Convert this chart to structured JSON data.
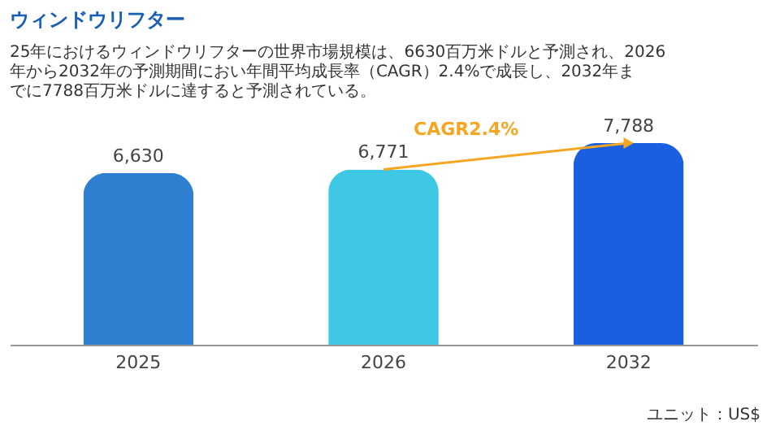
{
  "chart_data": {
    "type": "bar",
    "title": "ウィンドウリフター",
    "subtitle": "25年におけるウィンドウリフターの世界市場規模は、6630百万米ドルと予測され、2026年から2032年の予測期間におい年間平均成長率（CAGR）2.4%で成長し、2032年までに7788百万米ドルに達すると予測されている。",
    "categories": [
      "2025",
      "2026",
      "2032"
    ],
    "values": [
      6630,
      6771,
      7788
    ],
    "colors": [
      "#2f7fd0",
      "#3ec8e6",
      "#1a5fe0"
    ],
    "value_labels": [
      "6,630",
      "6,771",
      "7,788"
    ],
    "annotations": [
      "CAGR2.4%",
      "ユニット：US$"
    ]
  }
}
